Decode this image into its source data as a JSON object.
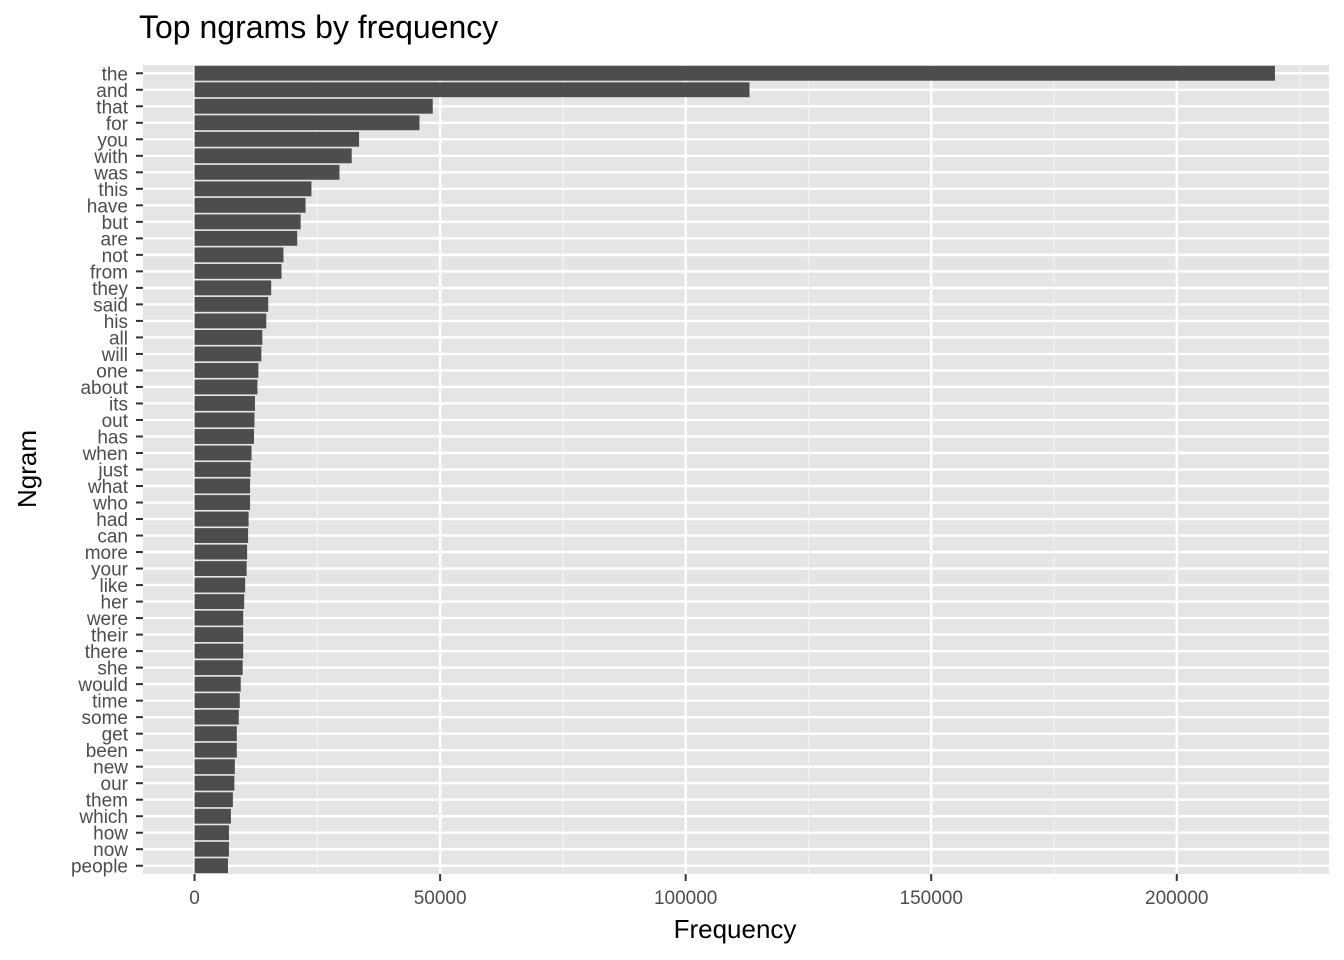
{
  "chart_data": {
    "type": "bar",
    "orientation": "horizontal",
    "title": "Top ngrams by frequency",
    "xlabel": "Frequency",
    "ylabel": "Ngram",
    "xlim": [
      -10500,
      231000
    ],
    "xticks": [
      0,
      50000,
      100000,
      150000,
      200000
    ],
    "xtick_labels": [
      "0",
      "50000",
      "100000",
      "150000",
      "200000"
    ],
    "grid": true,
    "bar_color": "#4d4d4d",
    "panel_color": "#e5e5e5",
    "categories": [
      "the",
      "and",
      "that",
      "for",
      "you",
      "with",
      "was",
      "this",
      "have",
      "but",
      "are",
      "not",
      "from",
      "they",
      "said",
      "his",
      "all",
      "will",
      "one",
      "about",
      "its",
      "out",
      "has",
      "when",
      "just",
      "what",
      "who",
      "had",
      "can",
      "more",
      "your",
      "like",
      "her",
      "were",
      "their",
      "there",
      "she",
      "would",
      "time",
      "some",
      "get",
      "been",
      "new",
      "our",
      "them",
      "which",
      "how",
      "now",
      "people"
    ],
    "values": [
      220000,
      113000,
      48500,
      45800,
      33500,
      32000,
      29500,
      23800,
      22600,
      21600,
      20900,
      18100,
      17700,
      15600,
      15000,
      14600,
      13800,
      13600,
      13000,
      12800,
      12300,
      12200,
      12100,
      11600,
      11400,
      11300,
      11300,
      11000,
      10900,
      10700,
      10600,
      10300,
      10100,
      9900,
      9900,
      9900,
      9800,
      9400,
      9200,
      9000,
      8600,
      8600,
      8200,
      8100,
      7800,
      7400,
      7000,
      7000,
      6800
    ]
  }
}
